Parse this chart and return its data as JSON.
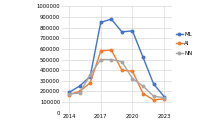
{
  "years": [
    2014,
    2015,
    2016,
    2017,
    2018,
    2019,
    2020,
    2021,
    2022,
    2023
  ],
  "ML": [
    190000,
    250000,
    340000,
    850000,
    880000,
    760000,
    770000,
    520000,
    270000,
    150000
  ],
  "AI": [
    170000,
    200000,
    280000,
    580000,
    590000,
    400000,
    390000,
    180000,
    120000,
    130000
  ],
  "NN": [
    175000,
    185000,
    355000,
    500000,
    500000,
    480000,
    320000,
    250000,
    155000,
    140000
  ],
  "ML_color": "#4472C4",
  "AI_color": "#ED7D31",
  "NN_color": "#A5A5A5",
  "ylim": [
    0,
    1000000
  ],
  "yticks": [
    0,
    100000,
    200000,
    300000,
    400000,
    500000,
    600000,
    700000,
    800000,
    900000,
    1000000
  ],
  "xticks": [
    2014,
    2017,
    2020,
    2023
  ],
  "background_color": "#ffffff",
  "grid_color": "#d9d9d9"
}
